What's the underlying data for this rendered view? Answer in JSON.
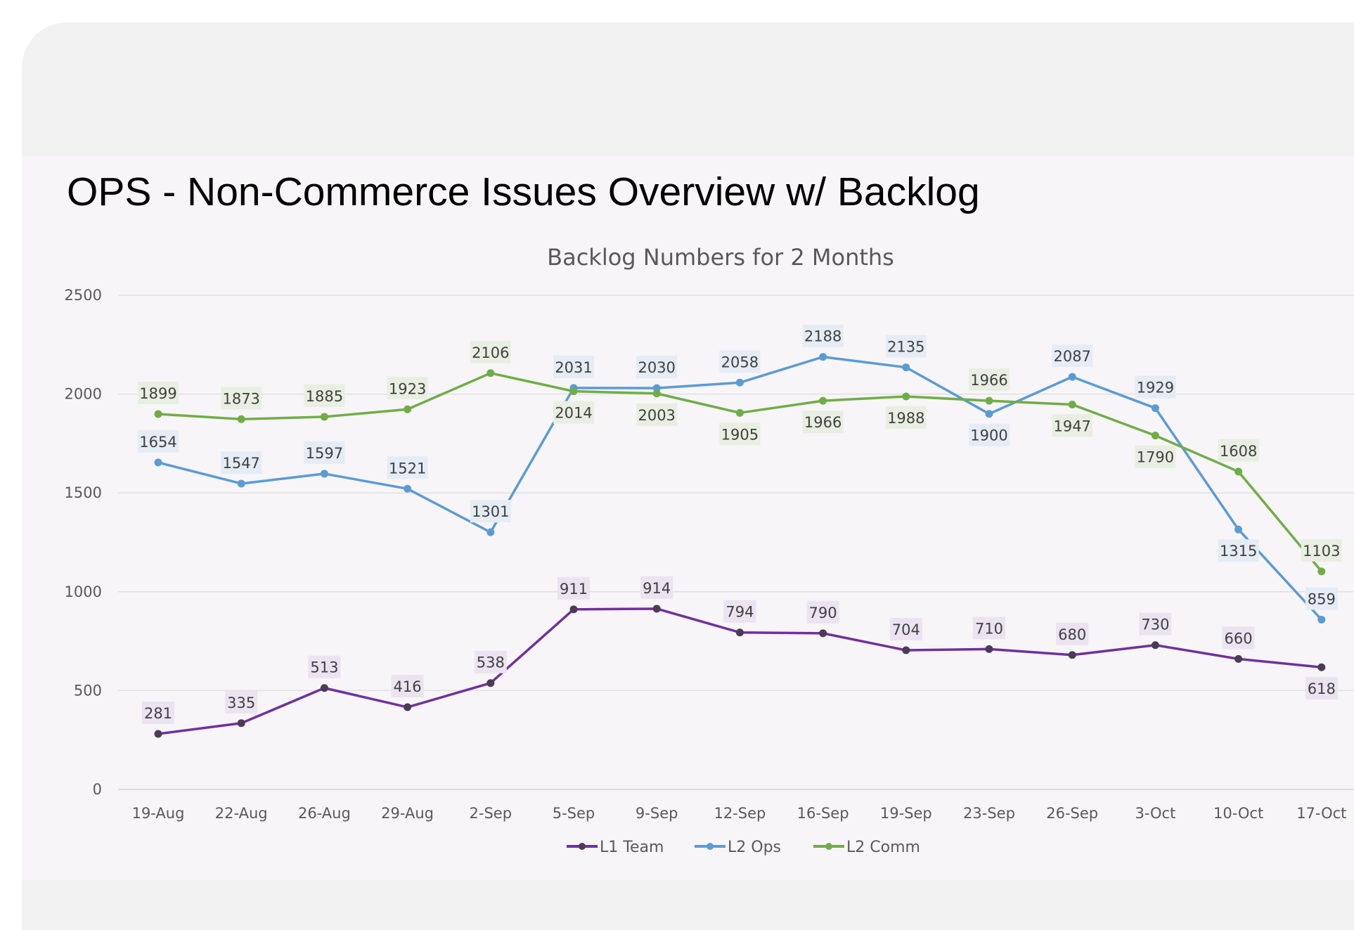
{
  "slide": {
    "title": "OPS - Non-Commerce Issues Overview w/ Backlog"
  },
  "chart_data": {
    "type": "line",
    "title": "Backlog Numbers for 2 Months",
    "categories": [
      "19-Aug",
      "22-Aug",
      "26-Aug",
      "29-Aug",
      "2-Sep",
      "5-Sep",
      "9-Sep",
      "12-Sep",
      "16-Sep",
      "19-Sep",
      "23-Sep",
      "26-Sep",
      "3-Oct",
      "10-Oct",
      "17-Oct"
    ],
    "yticks": [
      0,
      500,
      1000,
      1500,
      2000,
      2500
    ],
    "ylim": [
      0,
      2500
    ],
    "grid": true,
    "legend_position": "bottom",
    "data_labels": true,
    "series": [
      {
        "name": "L1 Team",
        "color": "#7030a0",
        "label_bg": "#ece3f1",
        "values": [
          281,
          335,
          513,
          416,
          538,
          911,
          914,
          794,
          790,
          704,
          710,
          680,
          730,
          660,
          618
        ]
      },
      {
        "name": "L2 Ops",
        "color": "#5b9bd5",
        "label_bg": "#e5ecf5",
        "values": [
          1654,
          1547,
          1597,
          1521,
          1301,
          2031,
          2030,
          2058,
          2188,
          2135,
          1900,
          2087,
          1929,
          1315,
          859
        ]
      },
      {
        "name": "L2 Comm",
        "color": "#70ad47",
        "label_bg": "#e8efe2",
        "values": [
          1899,
          1873,
          1885,
          1923,
          2106,
          2014,
          2003,
          1905,
          1966,
          1988,
          1966,
          1947,
          1790,
          1608,
          1103
        ]
      }
    ]
  }
}
